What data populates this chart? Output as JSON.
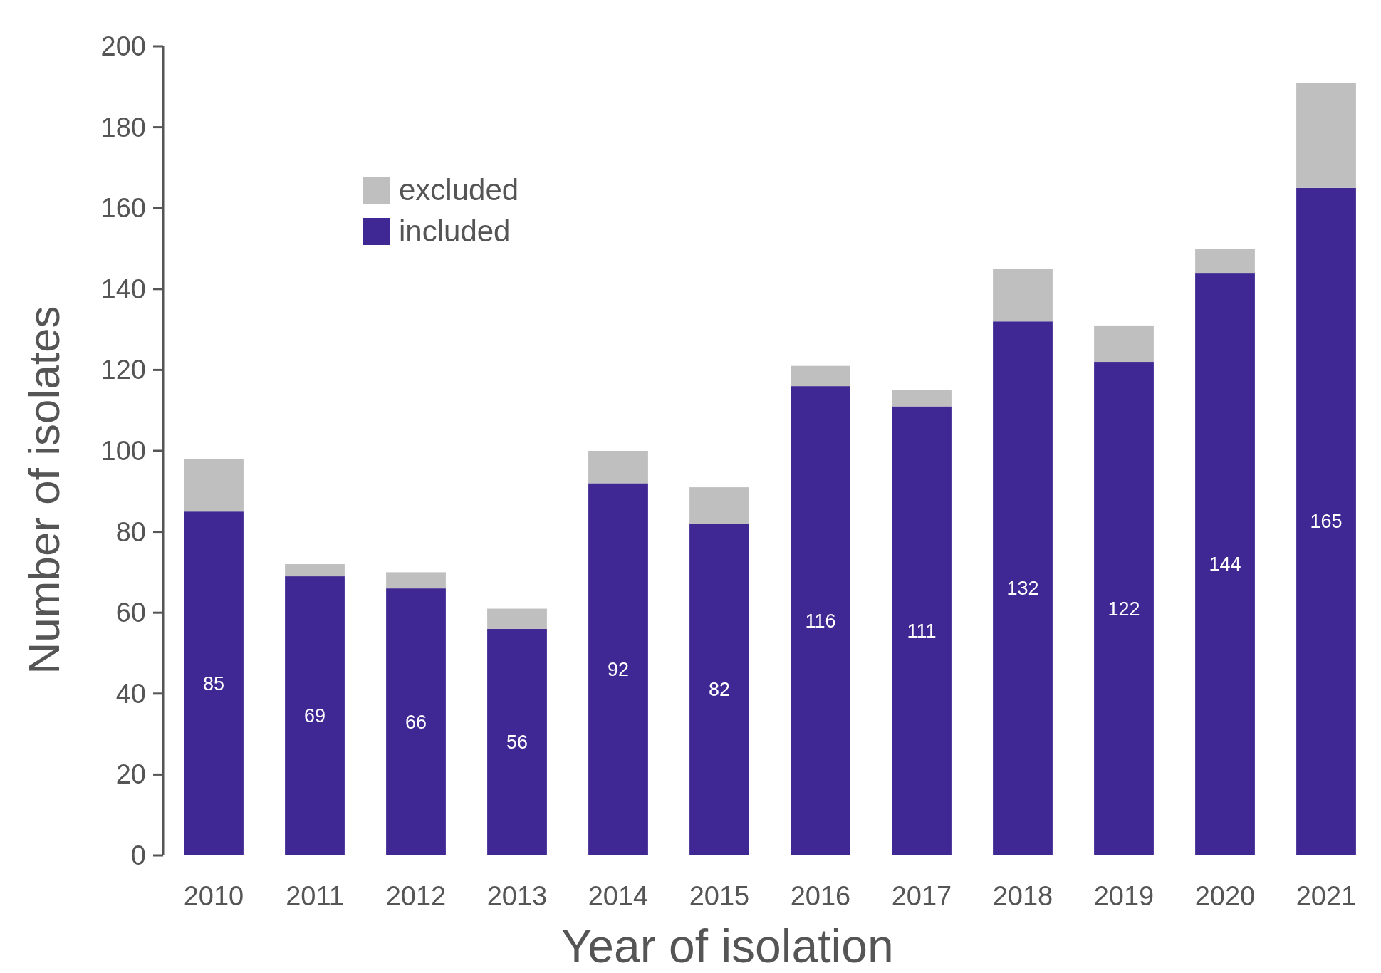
{
  "chart_data": {
    "type": "bar",
    "stacked": true,
    "xlabel": "Year of isolation",
    "ylabel": "Number of isolates",
    "categories": [
      "2010",
      "2011",
      "2012",
      "2013",
      "2014",
      "2015",
      "2016",
      "2017",
      "2018",
      "2019",
      "2020",
      "2021"
    ],
    "series": [
      {
        "name": "included",
        "color": "#3f2893",
        "values": [
          85,
          69,
          66,
          56,
          92,
          82,
          116,
          111,
          132,
          122,
          144,
          165
        ],
        "value_labels": [
          "85",
          "69",
          "66",
          "56",
          "92",
          "82",
          "116",
          "111",
          "132",
          "122",
          "144",
          "165"
        ]
      },
      {
        "name": "excluded",
        "color": "#bfbfbf",
        "values": [
          13,
          3,
          4,
          5,
          8,
          9,
          5,
          4,
          13,
          9,
          6,
          26
        ]
      }
    ],
    "ylim": [
      0,
      200
    ],
    "yticks": [
      0,
      20,
      40,
      60,
      80,
      100,
      120,
      140,
      160,
      180,
      200
    ],
    "legend": "top left",
    "grid": false
  }
}
